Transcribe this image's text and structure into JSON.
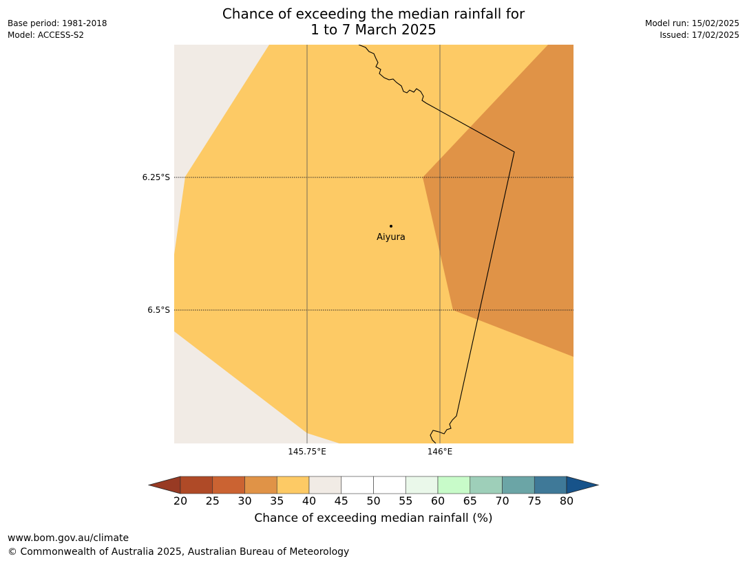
{
  "header": {
    "title_line1": "Chance of exceeding the median rainfall for",
    "title_line2": "1 to 7 March 2025",
    "base_period": "Base period: 1981-2018",
    "model": "Model: ACCESS-S2",
    "model_run": "Model run: 15/02/2025",
    "issued": "Issued: 17/02/2025"
  },
  "map": {
    "place_label": "Aiyura",
    "lat_labels": [
      "6.25°S",
      "6.5°S"
    ],
    "lon_labels": [
      "145.75°E",
      "146°E"
    ],
    "region_colors": {
      "c35_40": "#fdca65",
      "c30_35": "#e09347",
      "c40_45": "#f1ebe5"
    }
  },
  "colorbar": {
    "ticks": [
      "20",
      "25",
      "30",
      "35",
      "40",
      "45",
      "50",
      "55",
      "60",
      "65",
      "70",
      "75",
      "80"
    ],
    "colors": [
      "#983a23",
      "#af4a27",
      "#cb6332",
      "#e09347",
      "#fdca65",
      "#f1ebe5",
      "#ffffff",
      "#ffffff",
      "#eaf8ea",
      "#c8fbc9",
      "#9ecfb9",
      "#6ba5a6",
      "#3f7998",
      "#17538a"
    ],
    "title": "Chance of exceeding median rainfall (%)"
  },
  "footer": {
    "url": "www.bom.gov.au/climate",
    "copyright": "© Commonwealth of Australia 2025, Australian Bureau of Meteorology"
  }
}
